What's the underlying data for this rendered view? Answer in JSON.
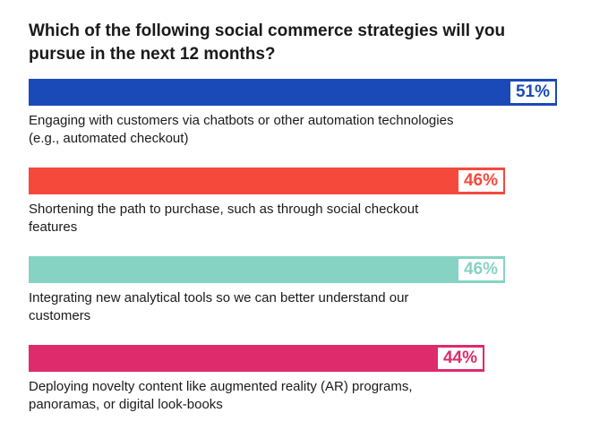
{
  "chart_data": {
    "type": "bar",
    "orientation": "horizontal",
    "title": "Which of the following social commerce strategies will you pursue in the next 12 months?",
    "categories": [
      "Engaging with customers via chatbots or other automation technologies (e.g., automated checkout)",
      "Shortening the path to purchase, such as through social checkout features",
      "Integrating new analytical tools so we can better understand our customers",
      "Deploying novelty content like augmented reality (AR) programs, panoramas, or digital look-books"
    ],
    "values": [
      51,
      46,
      46,
      44
    ],
    "value_labels": [
      "51%",
      "46%",
      "46%",
      "44%"
    ],
    "colors": [
      "#1a4ab8",
      "#f5493c",
      "#86d3c4",
      "#dd2b6c"
    ],
    "unit": "%",
    "xlim": [
      0,
      51
    ],
    "grid": false,
    "legend": "none"
  }
}
